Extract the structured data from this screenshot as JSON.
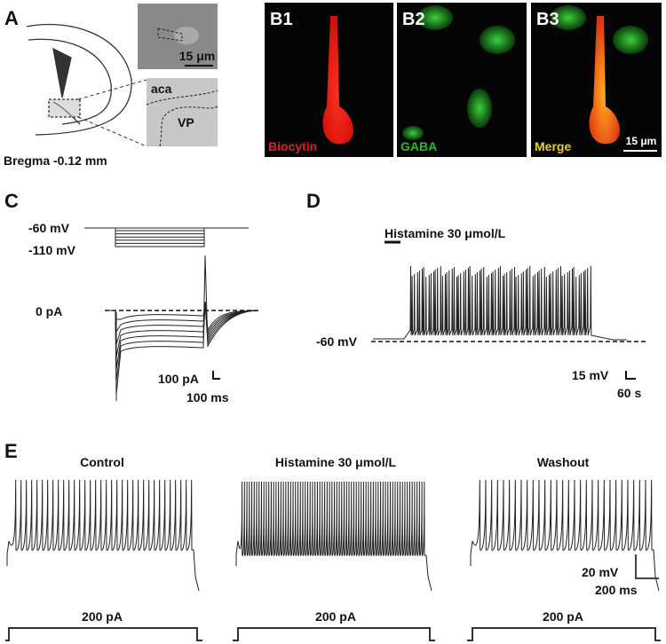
{
  "panel_a": {
    "label": "A",
    "scale": "15 μm",
    "region_top": "aca",
    "region_bottom": "VP",
    "caption": "Bregma -0.12 mm"
  },
  "panel_b": {
    "images": [
      {
        "label": "B1",
        "stain": "Biocytin"
      },
      {
        "label": "B2",
        "stain": "GABA"
      },
      {
        "label": "B3",
        "stain": "Merge"
      }
    ],
    "scale": "15 μm"
  },
  "panel_c": {
    "label": "C",
    "hold": "-60 mV",
    "step": "-110 mV",
    "zero": "0 pA",
    "scale_y": "100 pA",
    "scale_x": "100 ms"
  },
  "panel_d": {
    "label": "D",
    "drug": "Histamine 30 μmol/L",
    "baseline": "-60 mV",
    "scale_y": "15 mV",
    "scale_x": "60 s"
  },
  "panel_e": {
    "label": "E",
    "conditions": [
      {
        "title": "Control",
        "current": "200 pA"
      },
      {
        "title": "Histamine 30 μmol/L",
        "current": "200 pA"
      },
      {
        "title": "Washout",
        "current": "200 pA"
      }
    ],
    "scale_y": "20 mV",
    "scale_x": "200 ms"
  }
}
